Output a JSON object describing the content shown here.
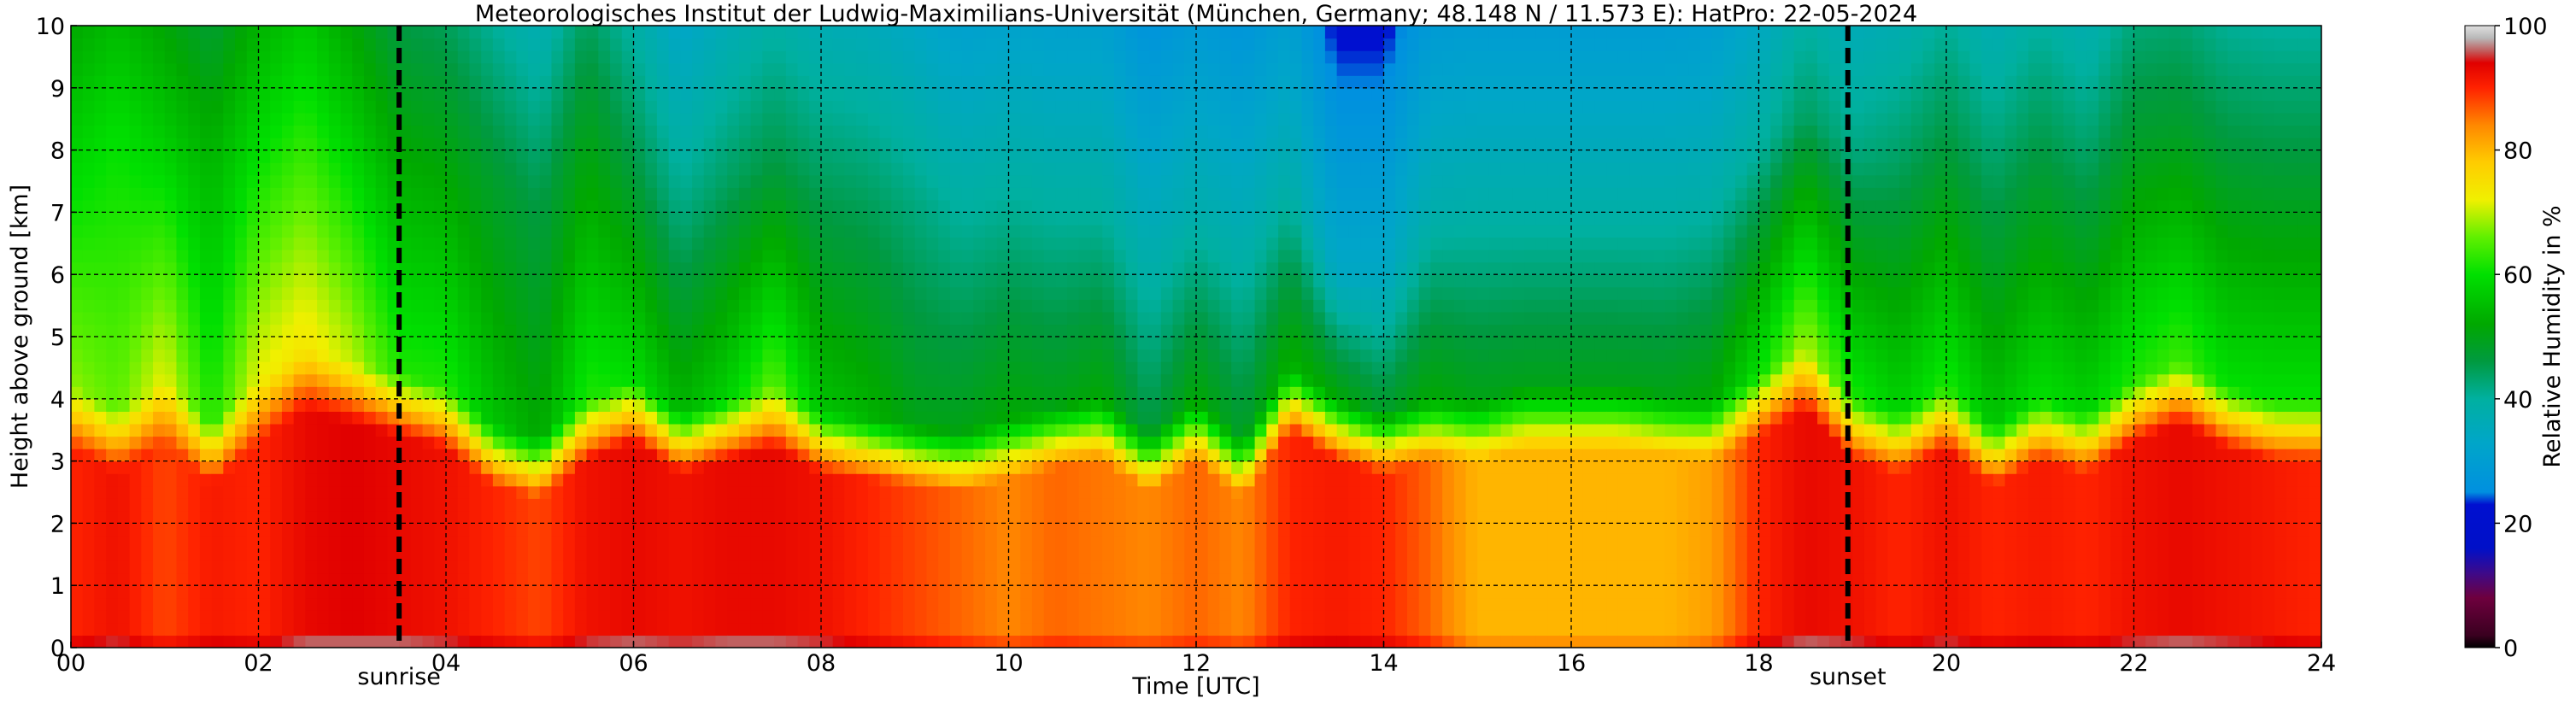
{
  "chart_data": {
    "type": "heatmap",
    "title": "Meteorologisches Institut der Ludwig-Maximilians-Universität (München, Germany; 48.148 N / 11.573 E):    HatPro: 22-05-2024",
    "xlabel": "Time [UTC]",
    "ylabel": "Height above ground [km]",
    "x_ticks": [
      "00",
      "02",
      "04",
      "06",
      "08",
      "10",
      "12",
      "14",
      "16",
      "18",
      "20",
      "22",
      "24"
    ],
    "y_ticks": [
      "0",
      "1",
      "2",
      "3",
      "4",
      "5",
      "6",
      "7",
      "8",
      "9",
      "10"
    ],
    "xlim": [
      0,
      24
    ],
    "ylim": [
      0,
      10
    ],
    "grid": true,
    "colorbar": {
      "label": "Relative Humidity in %",
      "ticks": [
        "0",
        "20",
        "40",
        "60",
        "80",
        "100"
      ],
      "range": [
        0,
        100
      ],
      "stops": [
        {
          "value": 0,
          "color": "#000000"
        },
        {
          "value": 2,
          "color": "#3a0020"
        },
        {
          "value": 8,
          "color": "#6e003e"
        },
        {
          "value": 12,
          "color": "#3d0a8a"
        },
        {
          "value": 16,
          "color": "#0010c8"
        },
        {
          "value": 23,
          "color": "#0010d0"
        },
        {
          "value": 25,
          "color": "#0090e0"
        },
        {
          "value": 33,
          "color": "#00a6c8"
        },
        {
          "value": 40,
          "color": "#00b0a0"
        },
        {
          "value": 46,
          "color": "#009a40"
        },
        {
          "value": 52,
          "color": "#00a800"
        },
        {
          "value": 60,
          "color": "#00e000"
        },
        {
          "value": 66,
          "color": "#60f000"
        },
        {
          "value": 72,
          "color": "#f0f000"
        },
        {
          "value": 78,
          "color": "#ffcc00"
        },
        {
          "value": 84,
          "color": "#ff8800"
        },
        {
          "value": 90,
          "color": "#ff2200"
        },
        {
          "value": 94,
          "color": "#e00000"
        },
        {
          "value": 96,
          "color": "#c06060"
        },
        {
          "value": 98,
          "color": "#b8b8b8"
        },
        {
          "value": 100,
          "color": "#e0e0e0"
        }
      ]
    },
    "events": [
      {
        "label": "sunrise",
        "time": 3.5
      },
      {
        "label": "sunset",
        "time": 18.95
      }
    ],
    "columns": [
      {
        "t": 0.0,
        "base": 90,
        "h1": 3.2,
        "top": 68,
        "h2": 8.0,
        "upper": 58
      },
      {
        "t": 0.5,
        "base": 92,
        "h1": 2.8,
        "top": 66,
        "h2": 8.3,
        "upper": 60
      },
      {
        "t": 1.0,
        "base": 88,
        "h1": 3.3,
        "top": 72,
        "h2": 8.5,
        "upper": 56
      },
      {
        "t": 1.5,
        "base": 91,
        "h1": 2.6,
        "top": 62,
        "h2": 7.8,
        "upper": 54
      },
      {
        "t": 2.0,
        "base": 90,
        "h1": 3.3,
        "top": 72,
        "h2": 8.5,
        "upper": 58
      },
      {
        "t": 2.5,
        "base": 93,
        "h1": 3.8,
        "top": 74,
        "h2": 9.0,
        "upper": 60
      },
      {
        "t": 3.0,
        "base": 94,
        "h1": 3.6,
        "top": 70,
        "h2": 8.6,
        "upper": 56
      },
      {
        "t": 3.5,
        "base": 93,
        "h1": 3.4,
        "top": 62,
        "h2": 8.0,
        "upper": 52
      },
      {
        "t": 4.0,
        "base": 92,
        "h1": 3.2,
        "top": 62,
        "h2": 8.2,
        "upper": 50
      },
      {
        "t": 4.5,
        "base": 90,
        "h1": 2.6,
        "top": 56,
        "h2": 7.5,
        "upper": 48
      },
      {
        "t": 5.0,
        "base": 88,
        "h1": 2.4,
        "top": 52,
        "h2": 7.0,
        "upper": 46
      },
      {
        "t": 5.5,
        "base": 92,
        "h1": 3.0,
        "top": 62,
        "h2": 8.2,
        "upper": 50
      },
      {
        "t": 6.0,
        "base": 93,
        "h1": 3.3,
        "top": 60,
        "h2": 7.8,
        "upper": 46
      },
      {
        "t": 6.5,
        "base": 92,
        "h1": 2.8,
        "top": 54,
        "h2": 7.0,
        "upper": 42
      },
      {
        "t": 7.0,
        "base": 93,
        "h1": 3.0,
        "top": 58,
        "h2": 7.5,
        "upper": 44
      },
      {
        "t": 7.5,
        "base": 93,
        "h1": 3.2,
        "top": 66,
        "h2": 7.8,
        "upper": 46
      },
      {
        "t": 8.0,
        "base": 92,
        "h1": 2.8,
        "top": 56,
        "h2": 7.6,
        "upper": 44
      },
      {
        "t": 8.5,
        "base": 90,
        "h1": 2.7,
        "top": 54,
        "h2": 7.3,
        "upper": 44
      },
      {
        "t": 9.0,
        "base": 88,
        "h1": 2.6,
        "top": 50,
        "h2": 7.2,
        "upper": 42
      },
      {
        "t": 9.5,
        "base": 86,
        "h1": 2.5,
        "top": 50,
        "h2": 7.0,
        "upper": 40
      },
      {
        "t": 10.0,
        "base": 84,
        "h1": 2.7,
        "top": 52,
        "h2": 7.3,
        "upper": 40
      },
      {
        "t": 10.5,
        "base": 86,
        "h1": 2.9,
        "top": 50,
        "h2": 7.0,
        "upper": 40
      },
      {
        "t": 11.0,
        "base": 85,
        "h1": 3.0,
        "top": 52,
        "h2": 7.0,
        "upper": 40
      },
      {
        "t": 11.5,
        "base": 84,
        "h1": 2.5,
        "top": 46,
        "h2": 6.8,
        "upper": 36
      },
      {
        "t": 12.0,
        "base": 86,
        "h1": 3.0,
        "top": 52,
        "h2": 7.0,
        "upper": 38
      },
      {
        "t": 12.5,
        "base": 84,
        "h1": 2.4,
        "top": 48,
        "h2": 7.0,
        "upper": 36
      },
      {
        "t": 13.0,
        "base": 90,
        "h1": 3.5,
        "top": 54,
        "h2": 7.6,
        "upper": 38
      },
      {
        "t": 13.5,
        "base": 91,
        "h1": 3.0,
        "top": 52,
        "h2": 6.0,
        "upper": 34
      },
      {
        "t": 14.0,
        "base": 90,
        "h1": 2.8,
        "top": 48,
        "h2": 6.0,
        "upper": 34
      },
      {
        "t": 14.5,
        "base": 86,
        "h1": 3.0,
        "top": 52,
        "h2": 7.0,
        "upper": 38
      },
      {
        "t": 15.0,
        "base": 80,
        "h1": 3.0,
        "top": 50,
        "h2": 7.2,
        "upper": 38
      },
      {
        "t": 15.5,
        "base": 80,
        "h1": 3.2,
        "top": 50,
        "h2": 7.2,
        "upper": 38
      },
      {
        "t": 16.0,
        "base": 80,
        "h1": 3.2,
        "top": 50,
        "h2": 7.2,
        "upper": 38
      },
      {
        "t": 16.5,
        "base": 80,
        "h1": 3.2,
        "top": 50,
        "h2": 7.2,
        "upper": 38
      },
      {
        "t": 17.0,
        "base": 80,
        "h1": 3.1,
        "top": 50,
        "h2": 7.2,
        "upper": 38
      },
      {
        "t": 17.5,
        "base": 82,
        "h1": 3.0,
        "top": 52,
        "h2": 7.4,
        "upper": 38
      },
      {
        "t": 18.0,
        "base": 90,
        "h1": 3.4,
        "top": 60,
        "h2": 8.0,
        "upper": 40
      },
      {
        "t": 18.5,
        "base": 93,
        "h1": 3.8,
        "top": 70,
        "h2": 8.6,
        "upper": 44
      },
      {
        "t": 19.0,
        "base": 92,
        "h1": 3.0,
        "top": 62,
        "h2": 8.0,
        "upper": 42
      },
      {
        "t": 19.5,
        "base": 90,
        "h1": 2.8,
        "top": 58,
        "h2": 7.8,
        "upper": 44
      },
      {
        "t": 20.0,
        "base": 92,
        "h1": 3.2,
        "top": 62,
        "h2": 8.2,
        "upper": 46
      },
      {
        "t": 20.5,
        "base": 90,
        "h1": 2.6,
        "top": 56,
        "h2": 7.6,
        "upper": 44
      },
      {
        "t": 21.0,
        "base": 91,
        "h1": 3.0,
        "top": 60,
        "h2": 8.0,
        "upper": 46
      },
      {
        "t": 21.5,
        "base": 90,
        "h1": 2.8,
        "top": 58,
        "h2": 7.8,
        "upper": 44
      },
      {
        "t": 22.0,
        "base": 92,
        "h1": 3.3,
        "top": 62,
        "h2": 8.2,
        "upper": 48
      },
      {
        "t": 22.5,
        "base": 93,
        "h1": 3.6,
        "top": 64,
        "h2": 8.4,
        "upper": 48
      },
      {
        "t": 23.0,
        "base": 92,
        "h1": 3.2,
        "top": 60,
        "h2": 8.2,
        "upper": 46
      },
      {
        "t": 23.5,
        "base": 91,
        "h1": 3.0,
        "top": 60,
        "h2": 8.0,
        "upper": 46
      },
      {
        "t": 24.0,
        "base": 90,
        "h1": 3.0,
        "top": 60,
        "h2": 8.0,
        "upper": 46
      }
    ]
  }
}
